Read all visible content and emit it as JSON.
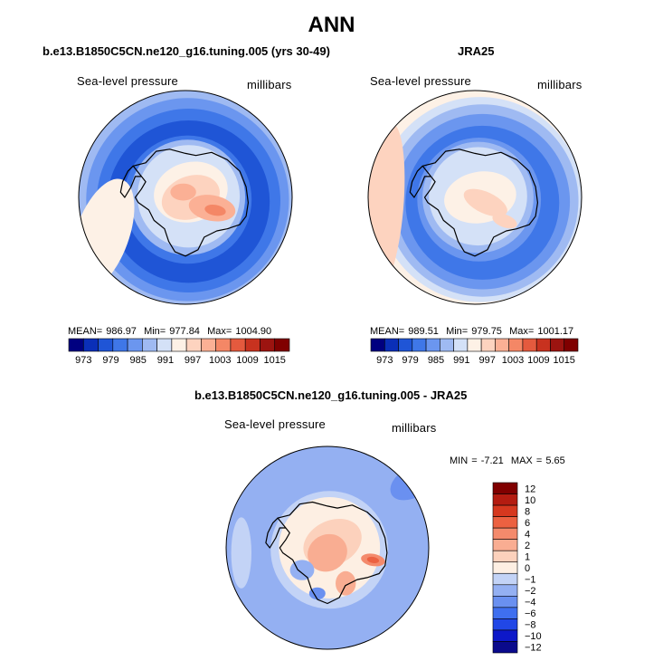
{
  "figure_title": "ANN",
  "colors": {
    "seq": [
      "#000080",
      "#0a2fb8",
      "#1f55d6",
      "#3f77e8",
      "#6b96ef",
      "#9fbaf2",
      "#d4e1f7",
      "#fdf1e6",
      "#fdd3bf",
      "#fbb095",
      "#f48766",
      "#e45a3e",
      "#c8321f",
      "#9c1410",
      "#800000"
    ],
    "diff": [
      "#0a0a8c",
      "#0d18c9",
      "#2147e6",
      "#3f6fef",
      "#6a90f0",
      "#94b0f2",
      "#c3d3f6",
      "#fdefe3",
      "#fcd1bc",
      "#f9ad92",
      "#f48a6c",
      "#ec6141",
      "#d6381f",
      "#b41c11",
      "#800000"
    ],
    "land_outline": "#000000"
  },
  "chart_data": [
    {
      "type": "contour-map",
      "panel": "model",
      "title": "b.e13.B1850C5CN.ne120_g16.tuning.005 (yrs 30-49)",
      "left_label": "Sea-level pressure",
      "right_label": "millibars",
      "stats": {
        "mean_label": "MEAN=",
        "mean": "986.97",
        "min_label": "Min=",
        "min": "977.84",
        "max_label": "Max=",
        "max": "1004.90"
      },
      "colorbar": {
        "orientation": "horizontal",
        "levels": [
          973,
          976,
          979,
          982,
          985,
          988,
          991,
          994,
          997,
          1000,
          1003,
          1006,
          1009,
          1012,
          1015
        ],
        "tick_labels": [
          "973",
          "979",
          "985",
          "991",
          "997",
          "1003",
          "1009",
          "1015"
        ]
      }
    },
    {
      "type": "contour-map",
      "panel": "obs",
      "title": "JRA25",
      "left_label": "Sea-level pressure",
      "right_label": "millibars",
      "stats": {
        "mean_label": "MEAN=",
        "mean": "989.51",
        "min_label": "Min=",
        "min": "979.75",
        "max_label": "Max=",
        "max": "1001.17"
      },
      "colorbar": {
        "orientation": "horizontal",
        "levels": [
          973,
          976,
          979,
          982,
          985,
          988,
          991,
          994,
          997,
          1000,
          1003,
          1006,
          1009,
          1012,
          1015
        ],
        "tick_labels": [
          "973",
          "979",
          "985",
          "991",
          "997",
          "1003",
          "1009",
          "1015"
        ]
      }
    },
    {
      "type": "contour-map",
      "panel": "difference",
      "title": "b.e13.B1850C5CN.ne120_g16.tuning.005 - JRA25",
      "left_label": "Sea-level pressure",
      "right_label": "millibars",
      "stats": {
        "min_label": "MIN =",
        "min": "-7.21",
        "max_label": "MAX =",
        "max": "5.65"
      },
      "colorbar": {
        "orientation": "vertical",
        "tick_labels": [
          "12",
          "10",
          "8",
          "6",
          "4",
          "2",
          "1",
          "0",
          "−1",
          "−2",
          "−4",
          "−6",
          "−8",
          "−10",
          "−12"
        ]
      }
    }
  ]
}
